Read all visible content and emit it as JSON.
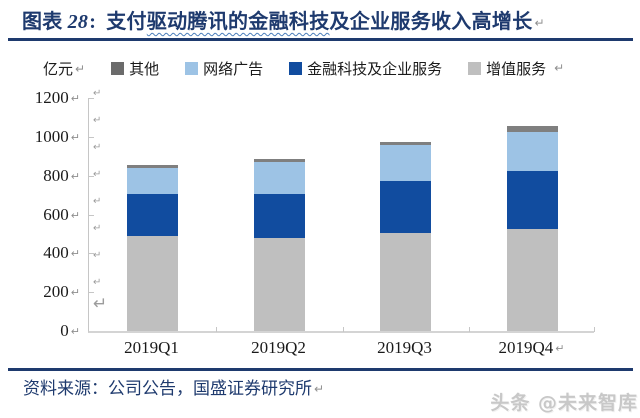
{
  "figure": {
    "caption_prefix": "图表",
    "caption_number": "28",
    "caption_separator": ":",
    "title_plain_start": "支付",
    "title_wavy": "驱动腾讯的金融科技",
    "title_rest": "及企业服务收入高增长",
    "unit_label": "亿元",
    "source_text": "资料来源：公司公告，国盛证券研究所",
    "watermark_text": "头条 @未来智库"
  },
  "marks": {
    "return": "↵"
  },
  "colors": {
    "accent_navy": "#1e3a6e",
    "axis_gray": "#c6c6c6",
    "bar_gray": "#bfbfbf",
    "bar_dark_blue": "#114c9f",
    "bar_light_blue": "#9dc3e5",
    "bar_dark_gray": "#7f7f7f",
    "watermark_gray": "#c8c8c8"
  },
  "chart_data": {
    "type": "bar",
    "stacked": true,
    "title": "支付驱动腾讯的金融科技及企业服务收入高增长",
    "unit": "亿元",
    "categories": [
      "2019Q1",
      "2019Q2",
      "2019Q3",
      "2019Q4"
    ],
    "series": [
      {
        "name": "增值服务",
        "color": "#bfbfbf",
        "values": [
          490,
          481,
          506,
          523
        ]
      },
      {
        "name": "金融科技及企业服务",
        "color": "#114c9f",
        "values": [
          218,
          229,
          268,
          299
        ]
      },
      {
        "name": "网络广告",
        "color": "#9dc3e5",
        "values": [
          134,
          164,
          184,
          202
        ]
      },
      {
        "name": "其他",
        "color": "#7f7f7f",
        "values": [
          14,
          14,
          15,
          33
        ]
      }
    ],
    "totals": [
      856,
      888,
      973,
      1057
    ],
    "legend": [
      {
        "label": "其他",
        "color": "#6b6b6b"
      },
      {
        "label": "网络广告",
        "color": "#9dc3e5"
      },
      {
        "label": "金融科技及企业服务",
        "color": "#114c9f"
      },
      {
        "label": "增值服务",
        "color": "#bfbfbf"
      }
    ],
    "legend_position": "top",
    "grid": false,
    "ylim": [
      0,
      1200
    ],
    "ytick_step": 200,
    "yticks": [
      1200,
      1000,
      800,
      600,
      400,
      200,
      0
    ]
  }
}
